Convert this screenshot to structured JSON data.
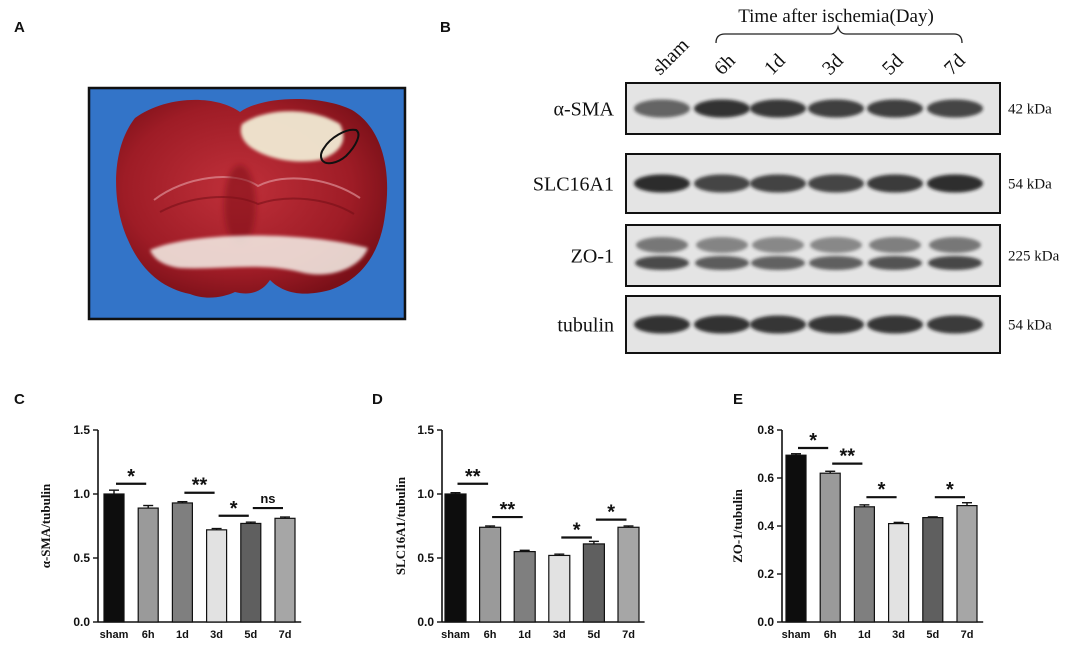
{
  "panels": {
    "A": "A",
    "B": "B",
    "C": "C",
    "D": "D",
    "E": "E"
  },
  "colors": {
    "sham": "#0d0d0d",
    "6h": "#9a9a9a",
    "1d": "#7f7f7f",
    "3d": "#e2e2e2",
    "5d": "#5f5f5f",
    "7d": "#a6a6a6",
    "brain_red": "#9e1c26",
    "brain_bg": "#2f6fc4"
  },
  "western_blot": {
    "time_label": "Time after ischemia(Day)",
    "lanes": [
      "sham",
      "6h",
      "1d",
      "3d",
      "5d",
      "7d"
    ],
    "rows": [
      {
        "protein": "α-SMA",
        "kda": "42 kDa"
      },
      {
        "protein": "SLC16A1",
        "kda": "54 kDa"
      },
      {
        "protein": "ZO-1",
        "kda": "225 kDa"
      },
      {
        "protein": "tubulin",
        "kda": "54 kDa"
      }
    ]
  },
  "chart_data": [
    {
      "type": "bar",
      "panel": "C",
      "categories": [
        "sham",
        "6h",
        "1d",
        "3d",
        "5d",
        "7d"
      ],
      "values": [
        1.0,
        0.89,
        0.93,
        0.72,
        0.77,
        0.81
      ],
      "errors": [
        0.03,
        0.02,
        0.01,
        0.01,
        0.01,
        0.01
      ],
      "ylabel": "α-SMA/tubulin",
      "ylim": [
        0,
        1.5
      ],
      "yticks": [
        "0.0",
        "0.5",
        "1.0",
        "1.5"
      ],
      "ytick_values": [
        0,
        0.5,
        1.0,
        1.5
      ],
      "significance": [
        {
          "from": 0,
          "to": 1,
          "label": "*",
          "y": 1.08
        },
        {
          "from": 2,
          "to": 3,
          "label": "**",
          "y": 1.01
        },
        {
          "from": 3,
          "to": 4,
          "label": "*",
          "y": 0.83
        },
        {
          "from": 4,
          "to": 5,
          "label": "ns",
          "y": 0.89
        }
      ]
    },
    {
      "type": "bar",
      "panel": "D",
      "categories": [
        "sham",
        "6h",
        "1d",
        "3d",
        "5d",
        "7d"
      ],
      "values": [
        1.0,
        0.74,
        0.55,
        0.52,
        0.61,
        0.74
      ],
      "errors": [
        0.01,
        0.01,
        0.01,
        0.01,
        0.02,
        0.01
      ],
      "ylabel": "SLC16A1/tubulin",
      "ylim": [
        0,
        1.5
      ],
      "yticks": [
        "0.0",
        "0.5",
        "1.0",
        "1.5"
      ],
      "ytick_values": [
        0,
        0.5,
        1.0,
        1.5
      ],
      "significance": [
        {
          "from": 0,
          "to": 1,
          "label": "**",
          "y": 1.08
        },
        {
          "from": 1,
          "to": 2,
          "label": "**",
          "y": 0.82
        },
        {
          "from": 3,
          "to": 4,
          "label": "*",
          "y": 0.66
        },
        {
          "from": 4,
          "to": 5,
          "label": "*",
          "y": 0.8
        }
      ]
    },
    {
      "type": "bar",
      "panel": "E",
      "categories": [
        "sham",
        "6h",
        "1d",
        "3d",
        "5d",
        "7d"
      ],
      "values": [
        0.695,
        0.62,
        0.48,
        0.41,
        0.435,
        0.485
      ],
      "errors": [
        0.006,
        0.008,
        0.008,
        0.005,
        0.003,
        0.012
      ],
      "ylabel": "ZO-1/tubulin",
      "ylim": [
        0,
        0.8
      ],
      "yticks": [
        "0.0",
        "0.2",
        "0.4",
        "0.6",
        "0.8"
      ],
      "ytick_values": [
        0,
        0.2,
        0.4,
        0.6,
        0.8
      ],
      "significance": [
        {
          "from": 0,
          "to": 1,
          "label": "*",
          "y": 0.725
        },
        {
          "from": 1,
          "to": 2,
          "label": "**",
          "y": 0.66
        },
        {
          "from": 2,
          "to": 3,
          "label": "*",
          "y": 0.52
        },
        {
          "from": 4,
          "to": 5,
          "label": "*",
          "y": 0.52
        }
      ]
    }
  ]
}
